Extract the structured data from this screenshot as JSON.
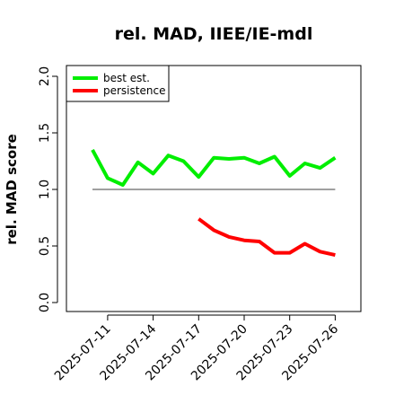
{
  "chart_data": {
    "type": "line",
    "title": "rel. MAD, IIEE/IE-mdl",
    "xlabel": "",
    "ylabel": "rel. MAD score",
    "ylim": [
      0.0,
      2.0
    ],
    "yticks": [
      "0.0",
      "0.5",
      "1.0",
      "1.5",
      "2.0"
    ],
    "xticks": [
      "2025-07-11",
      "2025-07-14",
      "2025-07-17",
      "2025-07-20",
      "2025-07-23",
      "2025-07-26"
    ],
    "x": [
      "2025-07-10",
      "2025-07-11",
      "2025-07-12",
      "2025-07-13",
      "2025-07-14",
      "2025-07-15",
      "2025-07-16",
      "2025-07-17",
      "2025-07-18",
      "2025-07-19",
      "2025-07-20",
      "2025-07-21",
      "2025-07-22",
      "2025-07-23",
      "2025-07-24",
      "2025-07-25",
      "2025-07-26"
    ],
    "series": [
      {
        "name": "best est.",
        "color": "#00ee00",
        "values": [
          1.35,
          1.1,
          1.04,
          1.24,
          1.14,
          1.3,
          1.25,
          1.11,
          1.28,
          1.27,
          1.28,
          1.23,
          1.29,
          1.12,
          1.23,
          1.19,
          1.28
        ]
      },
      {
        "name": "persistence",
        "color": "#ff0000",
        "values": [
          null,
          null,
          null,
          null,
          null,
          null,
          null,
          0.74,
          0.64,
          0.58,
          0.55,
          0.54,
          0.44,
          0.44,
          0.52,
          0.45,
          0.42
        ]
      }
    ],
    "reference_line": {
      "y": 1.0,
      "color": "#808080"
    },
    "legend": "top-left",
    "grid": false
  }
}
